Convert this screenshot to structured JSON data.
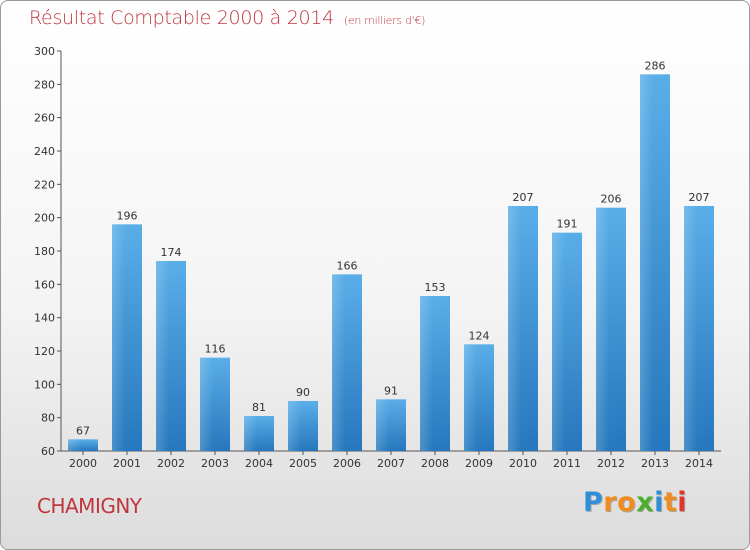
{
  "header": {
    "title": "Résultat Comptable 2000 à 2014",
    "unit": "(en milliers d'€)"
  },
  "footer": {
    "town": "CHAMIGNY",
    "logo_letters": [
      {
        "char": "P",
        "color": "#2f8fd6"
      },
      {
        "char": "r",
        "color": "#f08c1e"
      },
      {
        "char": "o",
        "color": "#f08c1e"
      },
      {
        "char": "x",
        "color": "#4caf2e"
      },
      {
        "char": "i",
        "color": "#2f8fd6"
      },
      {
        "char": "t",
        "color": "#f08c1e"
      },
      {
        "char": "i",
        "color": "#e0352b"
      }
    ]
  },
  "chart_data": {
    "type": "bar",
    "title": "Résultat Comptable 2000 à 2014",
    "categories": [
      "2000",
      "2001",
      "2002",
      "2003",
      "2004",
      "2005",
      "2006",
      "2007",
      "2008",
      "2009",
      "2010",
      "2011",
      "2012",
      "2013",
      "2014"
    ],
    "values": [
      67,
      196,
      174,
      116,
      81,
      90,
      166,
      91,
      153,
      124,
      207,
      191,
      206,
      286,
      207
    ],
    "ylim": [
      60,
      300
    ],
    "yticks": [
      60,
      80,
      100,
      120,
      140,
      160,
      180,
      200,
      220,
      240,
      260,
      280,
      300
    ],
    "grid": false,
    "bar_color": "#4a9fe0",
    "legend": "none"
  }
}
